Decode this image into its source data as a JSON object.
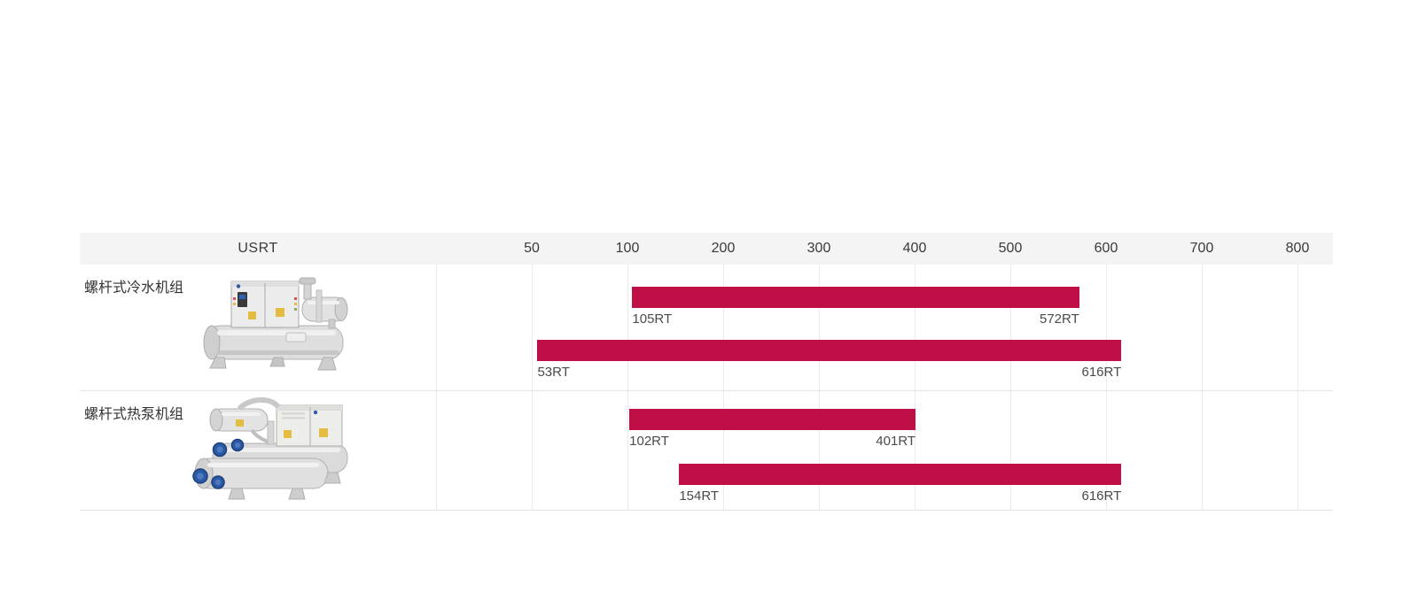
{
  "page": {
    "background": "#FFFFFF"
  },
  "chart_data": {
    "type": "range-bar",
    "title": "USRT",
    "unit_suffix": "RT",
    "legend_position": "none",
    "grid": true,
    "axis": {
      "ticks": [
        50,
        100,
        200,
        300,
        400,
        500,
        600,
        700,
        800
      ],
      "note": "equal pixel spacing per tick interval; 0-50 and 50-100 are half-steps, 100+ are full 100-unit steps"
    },
    "rows": [
      {
        "label": "螺杆式冷水机组",
        "product_image": "water-chiller-photo",
        "bars": [
          {
            "start": 105,
            "end": 572,
            "start_label": "105RT",
            "end_label": "572RT"
          },
          {
            "start": 53,
            "end": 616,
            "start_label": "53RT",
            "end_label": "616RT"
          }
        ]
      },
      {
        "label": "螺杆式热泵机组",
        "product_image": "heat-pump-photo",
        "bars": [
          {
            "start": 102,
            "end": 401,
            "start_label": "102RT",
            "end_label": "401RT"
          },
          {
            "start": 154,
            "end": 616,
            "start_label": "154RT",
            "end_label": "616RT"
          }
        ]
      }
    ],
    "colors": {
      "bar": "#C00F46",
      "header_bg": "#F4F4F4",
      "gridline": "#EBEBEB",
      "row_border": "#E2E2E2",
      "tick_text": "#3A3A3A",
      "row_label_text": "#333333",
      "bar_label_text": "#4A4A4A"
    }
  }
}
